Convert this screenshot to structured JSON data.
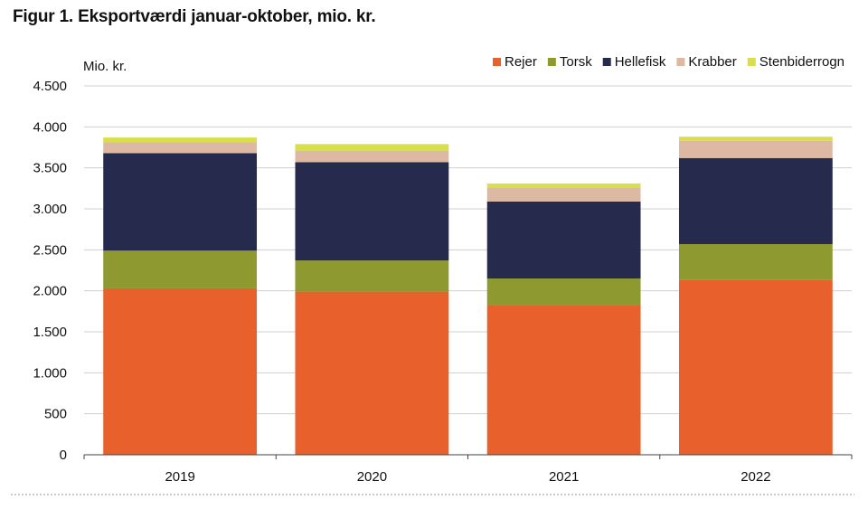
{
  "page": {
    "title": "Figur 1. Eksportværdi januar-oktober, mio. kr."
  },
  "chart_data": {
    "type": "bar",
    "stacked": true,
    "title": "Figur 1. Eksportværdi januar-oktober, mio. kr.",
    "ylabel": "Mio. kr.",
    "xlabel": "",
    "ylim": [
      0,
      4500
    ],
    "yticks": [
      0,
      500,
      1000,
      1500,
      2000,
      2500,
      3000,
      3500,
      4000,
      4500
    ],
    "ytick_labels": [
      "0",
      "500",
      "1.000",
      "1.500",
      "2.000",
      "2.500",
      "3.000",
      "3.500",
      "4.000",
      "4.500"
    ],
    "grid": true,
    "legend_position": "top-right",
    "categories": [
      "2019",
      "2020",
      "2021",
      "2022"
    ],
    "series": [
      {
        "name": "Rejer",
        "color": "#E8612C",
        "values": [
          2030,
          1990,
          1820,
          2130
        ]
      },
      {
        "name": "Torsk",
        "color": "#8E9A2F",
        "values": [
          460,
          380,
          330,
          440
        ]
      },
      {
        "name": "Hellefisk",
        "color": "#262B4E",
        "values": [
          1190,
          1200,
          940,
          1050
        ]
      },
      {
        "name": "Krabber",
        "color": "#DDB8A3",
        "values": [
          130,
          140,
          170,
          210
        ]
      },
      {
        "name": "Stenbiderrogn",
        "color": "#D7E04A",
        "values": [
          60,
          80,
          50,
          50
        ]
      }
    ]
  }
}
